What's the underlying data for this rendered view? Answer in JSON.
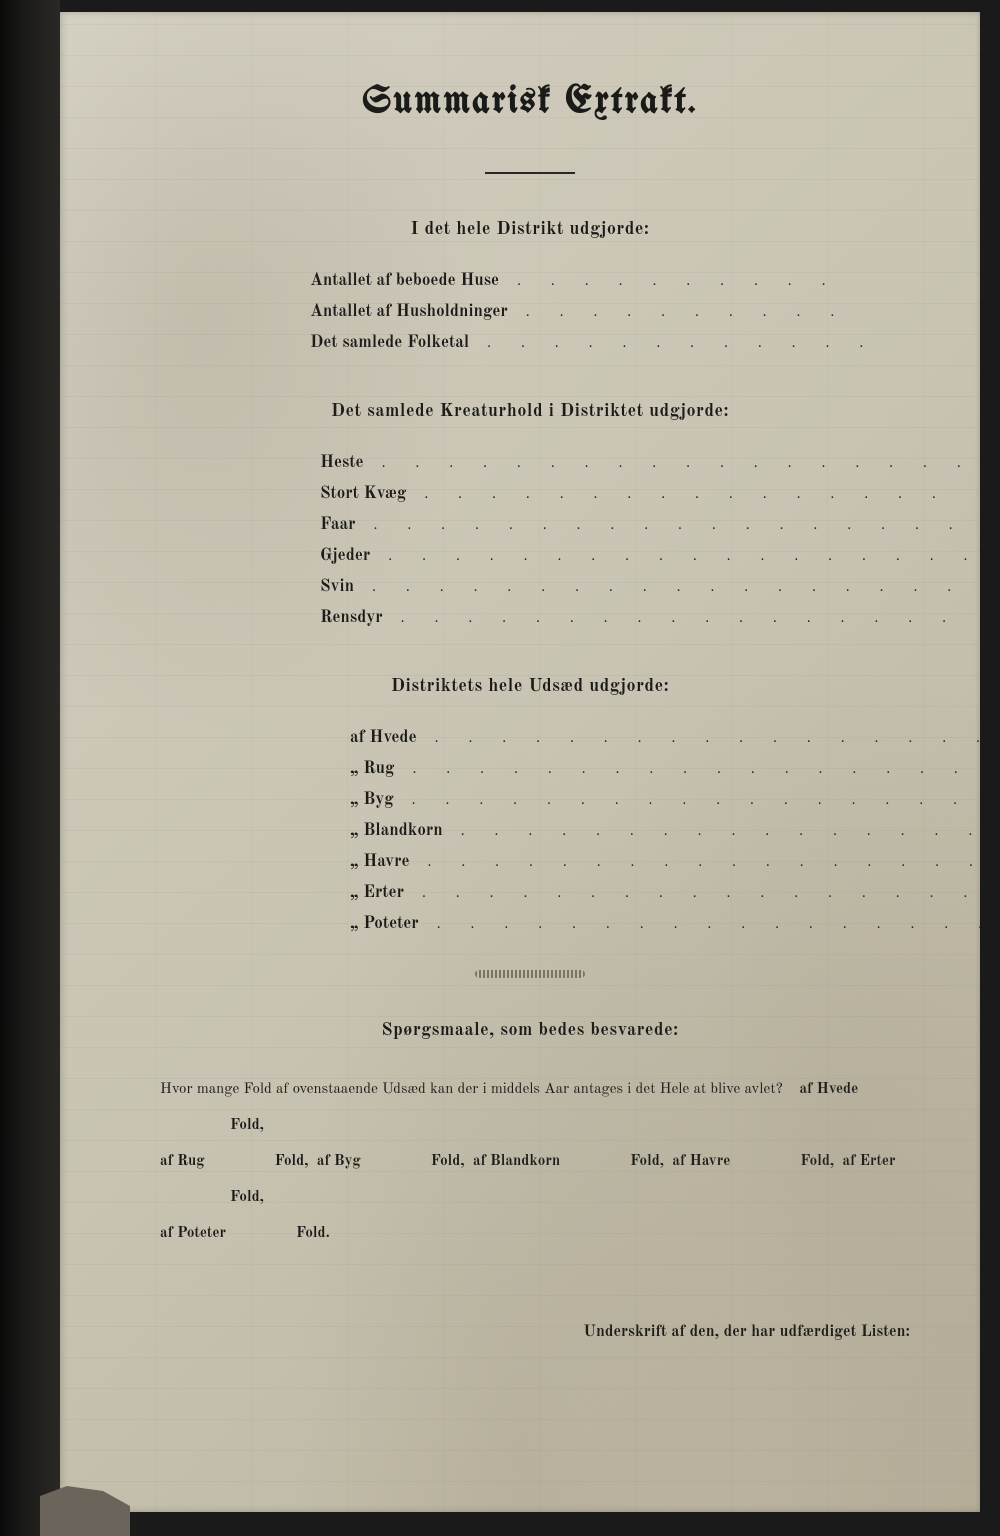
{
  "title": "Summarisk Extrakt.",
  "section1": {
    "heading": "I det hele Distrikt udgjorde:",
    "rows": [
      {
        "label": "Antallet af beboede Huse",
        "dots": ". . . . . . . . . ."
      },
      {
        "label": "Antallet af Husholdninger",
        "dots": ". . . . . . . . . ."
      },
      {
        "label": "Det samlede Folketal",
        "dots": ". . . . . . . . . . . ."
      }
    ]
  },
  "section2": {
    "heading": "Det samlede Kreaturhold i Distriktet udgjorde:",
    "rows": [
      {
        "label": "Heste",
        "dots": ". . . . . . . . . . . . . . . . . ."
      },
      {
        "label": "Stort Kvæg",
        "dots": ". . . . . . . . . . . . . . . ."
      },
      {
        "label": "Faar",
        "dots": ". . . . . . . . . . . . . . . . . . ."
      },
      {
        "label": "Gjeder",
        "dots": ". . . . . . . . . . . . . . . . . ."
      },
      {
        "label": "Svin",
        "dots": ". . . . . . . . . . . . . . . . . . ."
      },
      {
        "label": "Rensdyr",
        "dots": ". . . . . . . . . . . . . . . . ."
      }
    ]
  },
  "section3": {
    "heading": "Distriktets hele Udsæd udgjorde:",
    "rows": [
      {
        "label": "af Hvede",
        "dots": ". . . . . . . . . . . . . . . . . ."
      },
      {
        "label": "„ Rug",
        "dots": ". . . . . . . . . . . . . . . . . . . ."
      },
      {
        "label": "„ Byg",
        "dots": ". . . . . . . . . . . . . . . . . . . ."
      },
      {
        "label": "„ Blandkorn",
        "dots": ". . . . . . . . . . . . . . . . ."
      },
      {
        "label": "„ Havre",
        "dots": ". . . . . . . . . . . . . . . . . . ."
      },
      {
        "label": "„ Erter",
        "dots": ". . . . . . . . . . . . . . . . . . ."
      },
      {
        "label": "„ Poteter",
        "dots": ". . . . . . . . . . . . . . . . . ."
      }
    ]
  },
  "questions": {
    "heading": "Spørgsmaale, som bedes besvarede:",
    "intro": "Hvor mange Fold af ovenstaaende Udsæd kan der i middels Aar antages i det Hele at blive avlet?",
    "items": [
      "af Hvede",
      "Fold,",
      "af Rug",
      "Fold,",
      "af Byg",
      "Fold,",
      "af Blandkorn",
      "Fold,",
      "af Havre",
      "Fold,",
      "af Erter",
      "Fold,",
      "af Poteter",
      "Fold."
    ]
  },
  "signature": "Underskrift af den, der har udfærdiget Listen:",
  "style": {
    "page_bg": "#cec9ba",
    "text_color": "#1a1a18",
    "title_fontsize": 38,
    "section_fontsize": 18,
    "row_fontsize": 17,
    "question_fontsize": 15
  }
}
